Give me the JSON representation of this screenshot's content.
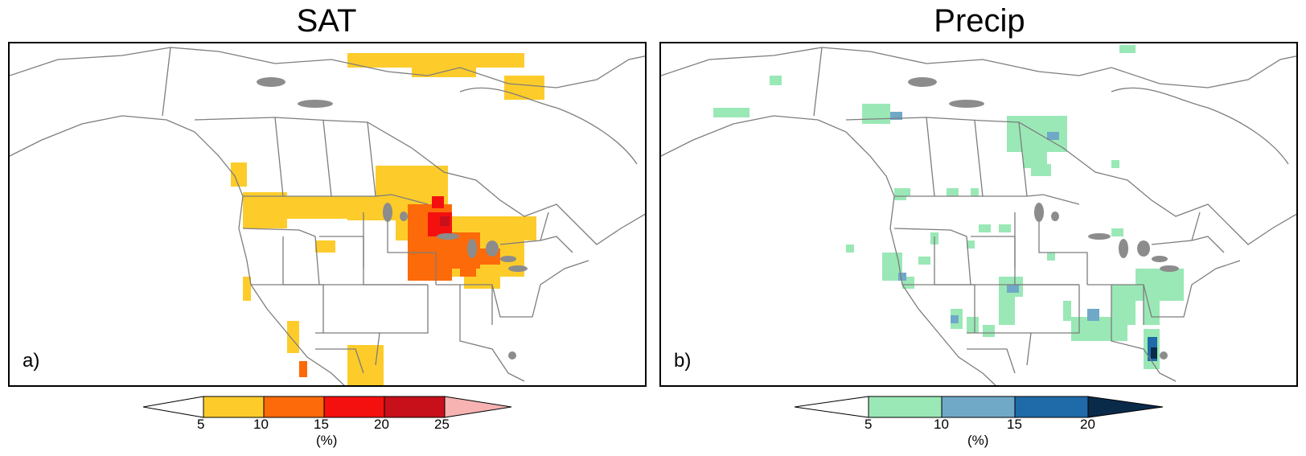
{
  "panels": [
    {
      "id": "a",
      "title": "SAT",
      "label": "a)",
      "colorbar": {
        "ticks": [
          "5",
          "10",
          "15",
          "20",
          "25"
        ],
        "unit": "(%)",
        "under_color": "#ffffff",
        "over_color": "#f7b2b2",
        "colors": [
          "#fdcc2a",
          "#fc6a0a",
          "#f51010",
          "#c8101a"
        ]
      }
    },
    {
      "id": "b",
      "title": "Precip",
      "label": "b)",
      "colorbar": {
        "ticks": [
          "5",
          "10",
          "15",
          "20"
        ],
        "unit": "(%)",
        "under_color": "#ffffff",
        "over_color": "#0a2a4a",
        "colors": [
          "#9ae8b6",
          "#6fa9c7",
          "#1f6aa8"
        ]
      }
    }
  ]
}
